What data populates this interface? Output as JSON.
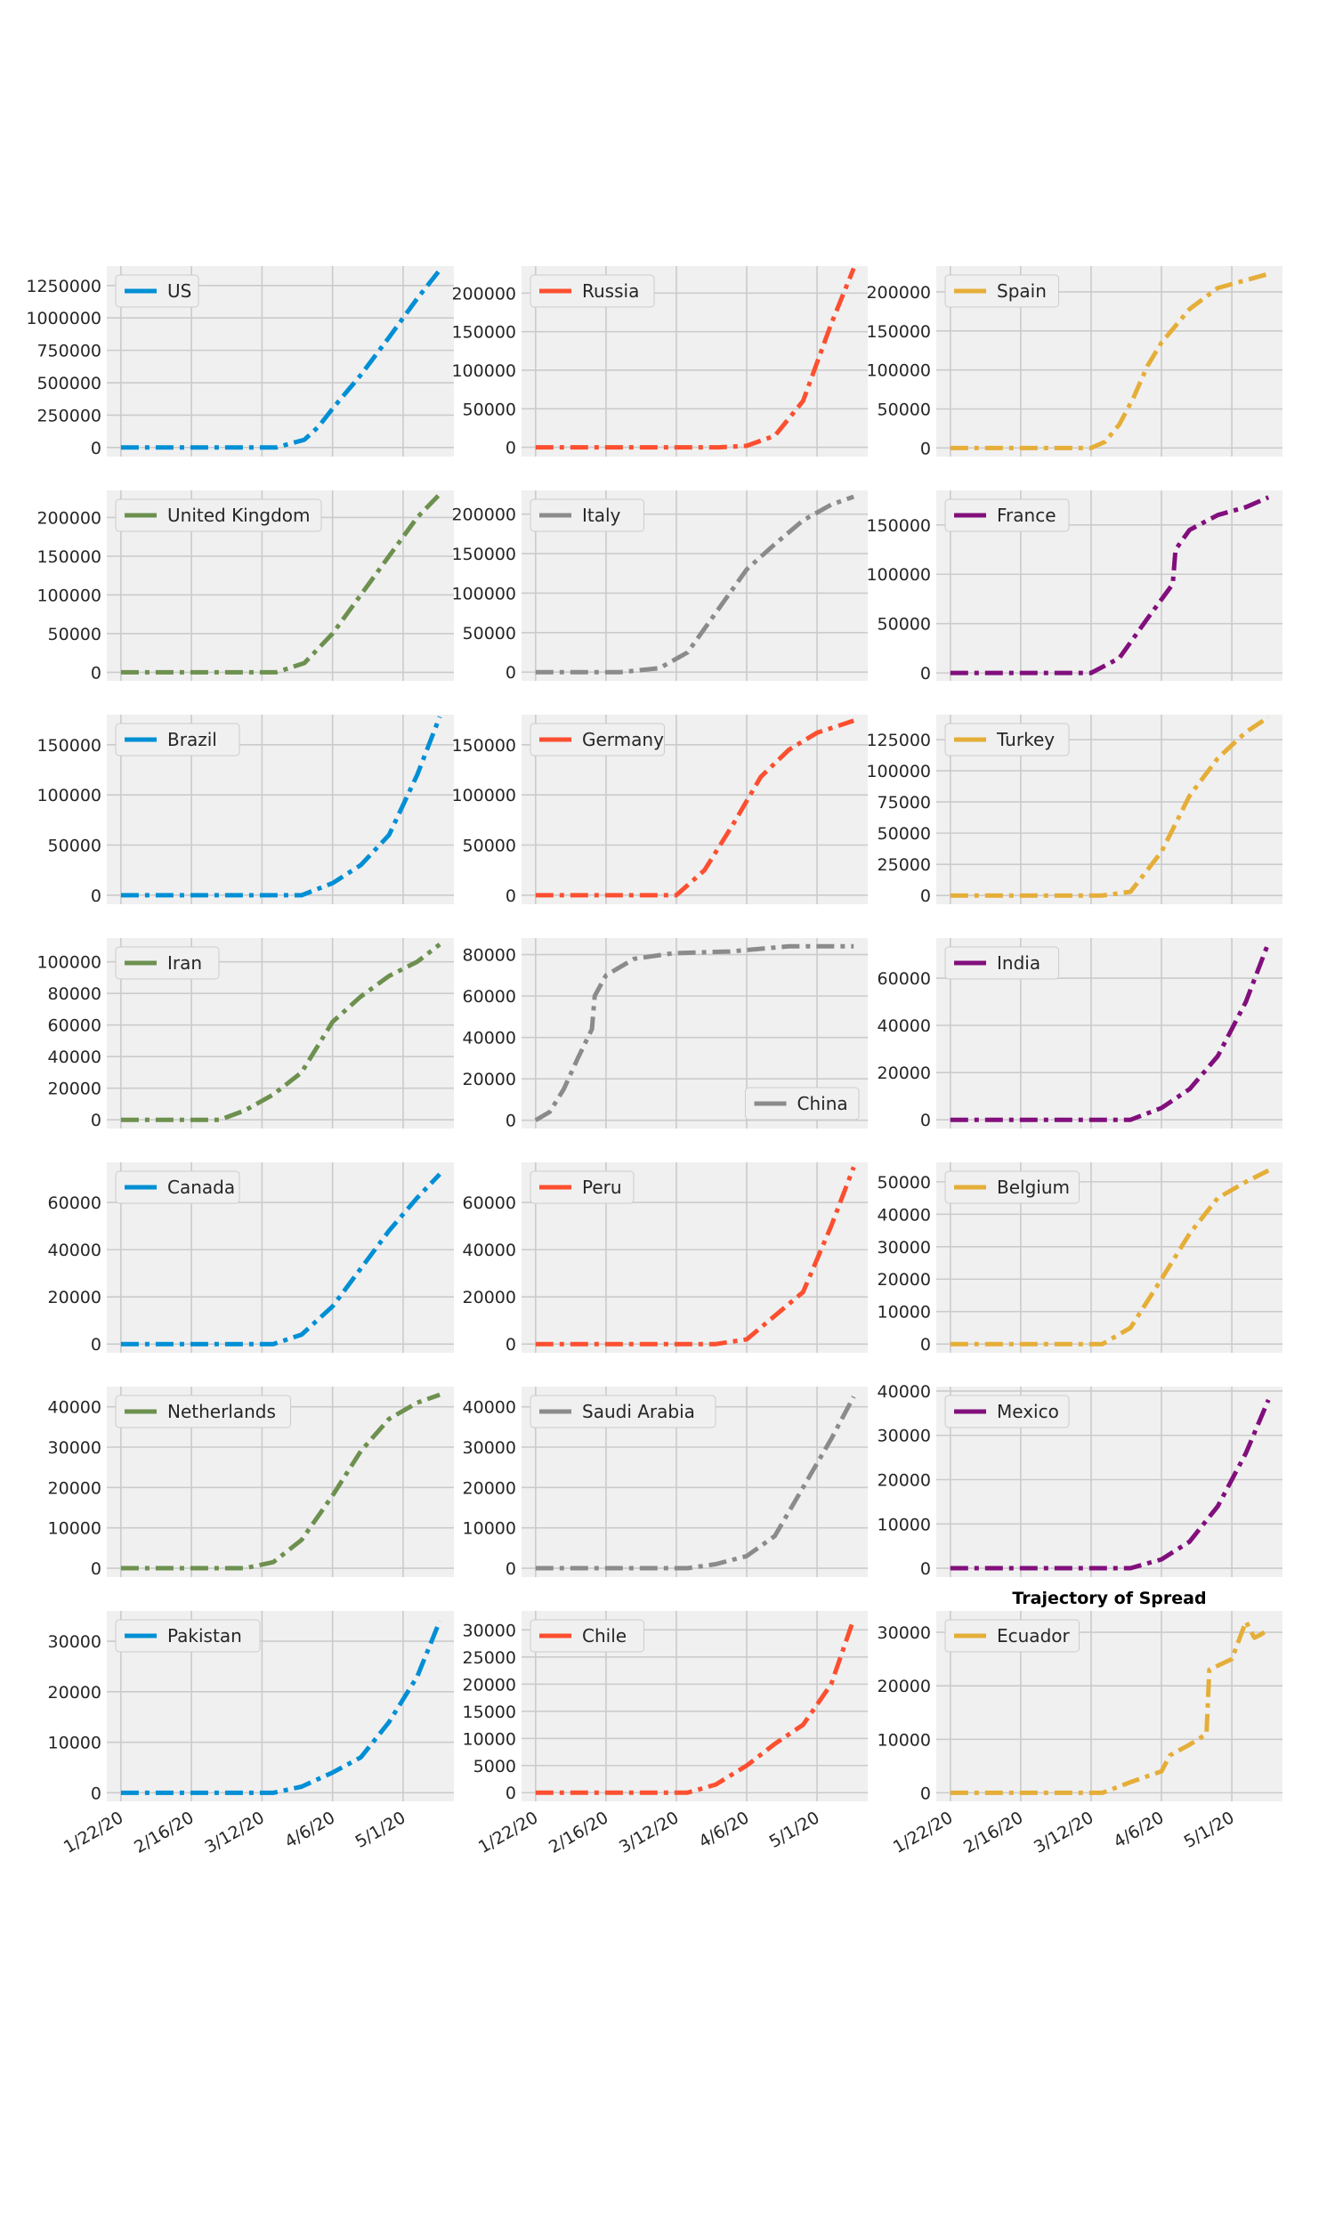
{
  "figure": {
    "title": "Trajectory of Spread"
  },
  "theme": {
    "background": "#ffffff",
    "axes_face": "#f0f0f0",
    "grid": "#cbcbcb",
    "series_colors": [
      "#008fd5",
      "#fc4f30",
      "#e5ae38",
      "#6d904f",
      "#8b8b8b",
      "#810f7c"
    ]
  },
  "chart_data": [
    {
      "type": "line",
      "country": "US",
      "color": "#008fd5",
      "legend_loc": "upper left",
      "ylim": [
        -70000,
        1400000
      ],
      "yticks": [
        0,
        250000,
        500000,
        750000,
        1000000,
        1250000
      ],
      "ytick_labels": [
        "0",
        "250000",
        "500000",
        "750000",
        "1000000",
        "1250000"
      ],
      "x": [
        "1/22/20",
        "3/17/20",
        "3/27/20",
        "4/1/20",
        "4/6/20",
        "4/16/20",
        "4/26/20",
        "5/6/20",
        "5/14/20"
      ],
      "values": [
        0,
        0,
        60000,
        160000,
        300000,
        560000,
        850000,
        1150000,
        1370000
      ],
      "series": [
        {
          "name": "US"
        }
      ]
    },
    {
      "type": "line",
      "country": "Russia",
      "color": "#fc4f30",
      "legend_loc": "upper left",
      "ylim": [
        -12000,
        235000
      ],
      "yticks": [
        0,
        50000,
        100000,
        150000,
        200000
      ],
      "ytick_labels": [
        "0",
        "50000",
        "100000",
        "150000",
        "200000"
      ],
      "x": [
        "1/22/20",
        "3/27/20",
        "4/6/20",
        "4/16/20",
        "4/26/20",
        "5/1/20",
        "5/6/20",
        "5/14/20"
      ],
      "values": [
        0,
        0,
        2000,
        15000,
        60000,
        110000,
        160000,
        232000
      ],
      "series": [
        {
          "name": "Russia"
        }
      ]
    },
    {
      "type": "line",
      "country": "Spain",
      "color": "#e5ae38",
      "legend_loc": "upper left",
      "ylim": [
        -11000,
        233000
      ],
      "yticks": [
        0,
        50000,
        100000,
        150000,
        200000
      ],
      "ytick_labels": [
        "0",
        "50000",
        "100000",
        "150000",
        "200000"
      ],
      "x": [
        "1/22/20",
        "3/12/20",
        "3/17/20",
        "3/22/20",
        "3/27/20",
        "4/1/20",
        "4/6/20",
        "4/16/20",
        "4/26/20",
        "5/6/20",
        "5/14/20"
      ],
      "values": [
        0,
        0,
        8000,
        30000,
        64000,
        105000,
        135000,
        178000,
        205000,
        215000,
        223000
      ],
      "series": [
        {
          "name": "Spain"
        }
      ]
    },
    {
      "type": "line",
      "country": "United Kingdom",
      "color": "#6d904f",
      "legend_loc": "upper left",
      "ylim": [
        -11000,
        235000
      ],
      "yticks": [
        0,
        50000,
        100000,
        150000,
        200000
      ],
      "ytick_labels": [
        "0",
        "50000",
        "100000",
        "150000",
        "200000"
      ],
      "x": [
        "1/22/20",
        "3/17/20",
        "3/27/20",
        "4/6/20",
        "4/16/20",
        "4/26/20",
        "5/6/20",
        "5/14/20"
      ],
      "values": [
        0,
        0,
        12000,
        50000,
        100000,
        150000,
        200000,
        230000
      ],
      "series": [
        {
          "name": "United Kingdom"
        }
      ]
    },
    {
      "type": "line",
      "country": "Italy",
      "color": "#8b8b8b",
      "legend_loc": "upper left",
      "ylim": [
        -11000,
        230000
      ],
      "yticks": [
        0,
        50000,
        100000,
        150000,
        200000
      ],
      "ytick_labels": [
        "0",
        "50000",
        "100000",
        "150000",
        "200000"
      ],
      "x": [
        "1/22/20",
        "2/21/20",
        "3/6/20",
        "3/16/20",
        "3/26/20",
        "4/6/20",
        "4/16/20",
        "4/26/20",
        "5/6/20",
        "5/14/20"
      ],
      "values": [
        0,
        0,
        5000,
        25000,
        75000,
        130000,
        162000,
        192000,
        212000,
        222000
      ],
      "series": [
        {
          "name": "Italy"
        }
      ]
    },
    {
      "type": "line",
      "country": "France",
      "color": "#810f7c",
      "legend_loc": "upper left",
      "ylim": [
        -8000,
        185000
      ],
      "yticks": [
        0,
        50000,
        100000,
        150000
      ],
      "ytick_labels": [
        "0",
        "50000",
        "100000",
        "150000"
      ],
      "x": [
        "1/22/20",
        "3/12/20",
        "3/22/20",
        "4/1/20",
        "4/10/20",
        "4/11/20",
        "4/16/20",
        "4/26/20",
        "5/6/20",
        "5/14/20"
      ],
      "values": [
        0,
        0,
        15000,
        55000,
        90000,
        125000,
        145000,
        160000,
        168000,
        178000
      ],
      "series": [
        {
          "name": "France"
        }
      ]
    },
    {
      "type": "line",
      "country": "Brazil",
      "color": "#008fd5",
      "legend_loc": "upper left",
      "ylim": [
        -9000,
        180000
      ],
      "yticks": [
        0,
        50000,
        100000,
        150000
      ],
      "ytick_labels": [
        "0",
        "50000",
        "100000",
        "150000"
      ],
      "x": [
        "1/22/20",
        "3/26/20",
        "4/6/20",
        "4/16/20",
        "4/26/20",
        "5/6/20",
        "5/14/20"
      ],
      "values": [
        0,
        0,
        12000,
        30000,
        60000,
        120000,
        178000
      ],
      "series": [
        {
          "name": "Brazil"
        }
      ]
    },
    {
      "type": "line",
      "country": "Germany",
      "color": "#fc4f30",
      "legend_loc": "upper left",
      "ylim": [
        -9000,
        180000
      ],
      "yticks": [
        0,
        50000,
        100000,
        150000
      ],
      "ytick_labels": [
        "0",
        "50000",
        "100000",
        "150000"
      ],
      "x": [
        "1/22/20",
        "3/12/20",
        "3/22/20",
        "4/1/20",
        "4/11/20",
        "4/21/20",
        "5/1/20",
        "5/14/20"
      ],
      "values": [
        0,
        0,
        25000,
        70000,
        118000,
        145000,
        162000,
        174000
      ],
      "series": [
        {
          "name": "Germany"
        }
      ]
    },
    {
      "type": "line",
      "country": "Turkey",
      "color": "#e5ae38",
      "legend_loc": "upper left",
      "ylim": [
        -7000,
        145000
      ],
      "yticks": [
        0,
        25000,
        50000,
        75000,
        100000,
        125000
      ],
      "ytick_labels": [
        "0",
        "25000",
        "50000",
        "75000",
        "100000",
        "125000"
      ],
      "x": [
        "1/22/20",
        "3/16/20",
        "3/26/20",
        "4/6/20",
        "4/16/20",
        "4/26/20",
        "5/6/20",
        "5/14/20"
      ],
      "values": [
        0,
        0,
        3000,
        35000,
        80000,
        110000,
        131000,
        143000
      ],
      "series": [
        {
          "name": "Turkey"
        }
      ]
    },
    {
      "type": "line",
      "country": "Iran",
      "color": "#6d904f",
      "legend_loc": "upper left",
      "ylim": [
        -5500,
        115000
      ],
      "yticks": [
        0,
        20000,
        40000,
        60000,
        80000,
        100000
      ],
      "ytick_labels": [
        "0",
        "20000",
        "40000",
        "60000",
        "80000",
        "100000"
      ],
      "x": [
        "1/22/20",
        "2/26/20",
        "3/6/20",
        "3/16/20",
        "3/26/20",
        "4/6/20",
        "4/16/20",
        "4/26/20",
        "5/6/20",
        "5/14/20"
      ],
      "values": [
        0,
        0,
        6000,
        16000,
        30000,
        62000,
        78000,
        91000,
        100000,
        111000
      ],
      "series": [
        {
          "name": "Iran"
        }
      ]
    },
    {
      "type": "line",
      "country": "China",
      "color": "#8b8b8b",
      "legend_loc": "lower right",
      "ylim": [
        -4000,
        88000
      ],
      "yticks": [
        0,
        20000,
        40000,
        60000,
        80000
      ],
      "ytick_labels": [
        "0",
        "20000",
        "40000",
        "60000",
        "80000"
      ],
      "x": [
        "1/22/20",
        "1/27/20",
        "2/1/20",
        "2/6/20",
        "2/11/20",
        "2/12/20",
        "2/16/20",
        "2/26/20",
        "3/11/20",
        "3/31/20",
        "4/21/20",
        "5/14/20"
      ],
      "values": [
        0,
        4000,
        15000,
        30000,
        44000,
        60000,
        70000,
        78000,
        80700,
        81500,
        84000,
        84000
      ],
      "series": [
        {
          "name": "China"
        }
      ]
    },
    {
      "type": "line",
      "country": "India",
      "color": "#810f7c",
      "legend_loc": "upper left",
      "ylim": [
        -3700,
        77000
      ],
      "yticks": [
        0,
        20000,
        40000,
        60000
      ],
      "ytick_labels": [
        "0",
        "20000",
        "40000",
        "60000"
      ],
      "x": [
        "1/22/20",
        "3/26/20",
        "4/6/20",
        "4/16/20",
        "4/26/20",
        "5/6/20",
        "5/14/20"
      ],
      "values": [
        0,
        0,
        5000,
        13000,
        27000,
        50000,
        75000
      ],
      "series": [
        {
          "name": "India"
        }
      ]
    },
    {
      "type": "line",
      "country": "Canada",
      "color": "#008fd5",
      "legend_loc": "upper left",
      "ylim": [
        -3700,
        77000
      ],
      "yticks": [
        0,
        20000,
        40000,
        60000
      ],
      "ytick_labels": [
        "0",
        "20000",
        "40000",
        "60000"
      ],
      "x": [
        "1/22/20",
        "3/16/20",
        "3/26/20",
        "4/6/20",
        "4/16/20",
        "4/26/20",
        "5/6/20",
        "5/14/20"
      ],
      "values": [
        0,
        0,
        4000,
        16000,
        32000,
        48000,
        62000,
        72000
      ],
      "series": [
        {
          "name": "Canada"
        }
      ]
    },
    {
      "type": "line",
      "country": "Peru",
      "color": "#fc4f30",
      "legend_loc": "upper left",
      "ylim": [
        -3700,
        77000
      ],
      "yticks": [
        0,
        20000,
        40000,
        60000
      ],
      "ytick_labels": [
        "0",
        "20000",
        "40000",
        "60000"
      ],
      "x": [
        "1/22/20",
        "3/26/20",
        "4/6/20",
        "4/16/20",
        "4/26/20",
        "5/6/20",
        "5/14/20"
      ],
      "values": [
        0,
        0,
        2000,
        12000,
        22000,
        50000,
        75000
      ],
      "series": [
        {
          "name": "Peru"
        }
      ]
    },
    {
      "type": "line",
      "country": "Belgium",
      "color": "#e5ae38",
      "legend_loc": "upper left",
      "ylim": [
        -2700,
        56000
      ],
      "yticks": [
        0,
        10000,
        20000,
        30000,
        40000,
        50000
      ],
      "ytick_labels": [
        "0",
        "10000",
        "20000",
        "30000",
        "40000",
        "50000"
      ],
      "x": [
        "1/22/20",
        "3/16/20",
        "3/26/20",
        "4/6/20",
        "4/16/20",
        "4/26/20",
        "5/6/20",
        "5/14/20"
      ],
      "values": [
        0,
        0,
        5000,
        20000,
        34000,
        45000,
        50000,
        53500
      ],
      "series": [
        {
          "name": "Belgium"
        }
      ]
    },
    {
      "type": "line",
      "country": "Netherlands",
      "color": "#6d904f",
      "legend_loc": "upper left",
      "ylim": [
        -2200,
        45000
      ],
      "yticks": [
        0,
        10000,
        20000,
        30000,
        40000
      ],
      "ytick_labels": [
        "0",
        "10000",
        "20000",
        "30000",
        "40000"
      ],
      "x": [
        "1/22/20",
        "3/6/20",
        "3/16/20",
        "3/26/20",
        "4/6/20",
        "4/16/20",
        "4/26/20",
        "5/6/20",
        "5/14/20"
      ],
      "values": [
        0,
        0,
        1500,
        7000,
        18000,
        29000,
        37000,
        41000,
        43000
      ],
      "series": [
        {
          "name": "Netherlands"
        }
      ]
    },
    {
      "type": "line",
      "country": "Saudi Arabia",
      "color": "#8b8b8b",
      "legend_loc": "upper left",
      "ylim": [
        -2200,
        45000
      ],
      "yticks": [
        0,
        10000,
        20000,
        30000,
        40000
      ],
      "ytick_labels": [
        "0",
        "10000",
        "20000",
        "30000",
        "40000"
      ],
      "x": [
        "1/22/20",
        "3/16/20",
        "3/26/20",
        "4/6/20",
        "4/16/20",
        "4/26/20",
        "5/6/20",
        "5/14/20"
      ],
      "values": [
        0,
        0,
        1000,
        3000,
        8000,
        20000,
        32000,
        42500
      ],
      "series": [
        {
          "name": "Saudi Arabia"
        }
      ]
    },
    {
      "type": "line",
      "country": "Mexico",
      "color": "#810f7c",
      "legend_loc": "upper left",
      "ylim": [
        -2000,
        41000
      ],
      "yticks": [
        0,
        10000,
        20000,
        30000,
        40000
      ],
      "ytick_labels": [
        "0",
        "10000",
        "20000",
        "30000",
        "40000"
      ],
      "x": [
        "1/22/20",
        "3/26/20",
        "4/6/20",
        "4/16/20",
        "4/26/20",
        "5/6/20",
        "5/14/20"
      ],
      "values": [
        0,
        0,
        2000,
        6000,
        14000,
        26000,
        38000
      ],
      "series": [
        {
          "name": "Mexico"
        }
      ]
    },
    {
      "type": "line",
      "country": "Pakistan",
      "color": "#008fd5",
      "legend_loc": "upper left",
      "ylim": [
        -1700,
        36000
      ],
      "yticks": [
        0,
        10000,
        20000,
        30000
      ],
      "ytick_labels": [
        "0",
        "10000",
        "20000",
        "30000"
      ],
      "x": [
        "1/22/20",
        "3/16/20",
        "3/26/20",
        "4/6/20",
        "4/16/20",
        "4/26/20",
        "5/6/20",
        "5/14/20"
      ],
      "values": [
        0,
        0,
        1200,
        4000,
        7000,
        14000,
        23000,
        34000
      ],
      "series": [
        {
          "name": "Pakistan"
        }
      ]
    },
    {
      "type": "line",
      "country": "Chile",
      "color": "#fc4f30",
      "legend_loc": "upper left",
      "ylim": [
        -1600,
        33500
      ],
      "yticks": [
        0,
        5000,
        10000,
        15000,
        20000,
        25000,
        30000
      ],
      "ytick_labels": [
        "0",
        "5000",
        "10000",
        "15000",
        "20000",
        "25000",
        "30000"
      ],
      "x": [
        "1/22/20",
        "3/16/20",
        "3/26/20",
        "4/6/20",
        "4/16/20",
        "4/26/20",
        "5/6/20",
        "5/14/20"
      ],
      "values": [
        0,
        0,
        1500,
        5000,
        9000,
        12500,
        20000,
        32000
      ],
      "series": [
        {
          "name": "Chile"
        }
      ]
    },
    {
      "type": "line",
      "country": "Ecuador",
      "color": "#e5ae38",
      "legend_loc": "upper left",
      "title": "Trajectory of Spread",
      "ylim": [
        -1600,
        34000
      ],
      "yticks": [
        0,
        10000,
        20000,
        30000
      ],
      "ytick_labels": [
        "0",
        "10000",
        "20000",
        "30000"
      ],
      "x": [
        "1/22/20",
        "3/16/20",
        "3/26/20",
        "4/6/20",
        "4/9/20",
        "4/16/20",
        "4/22/20",
        "4/23/20",
        "5/1/20",
        "5/6/20",
        "5/9/20",
        "5/11/20",
        "5/14/20"
      ],
      "values": [
        0,
        0,
        2000,
        4000,
        7000,
        9000,
        11000,
        23000,
        25000,
        32000,
        29000,
        29500,
        30500
      ],
      "series": [
        {
          "name": "Ecuador"
        }
      ]
    }
  ],
  "x_axis": {
    "tick_dates": [
      "1/22/20",
      "2/16/20",
      "3/12/20",
      "4/6/20",
      "5/1/20"
    ],
    "tick_labels": [
      "1/22/20",
      "2/16/20",
      "3/12/20",
      "4/6/20",
      "5/1/20"
    ],
    "range": [
      "1/17/20",
      "5/19/20"
    ]
  },
  "grid": true
}
